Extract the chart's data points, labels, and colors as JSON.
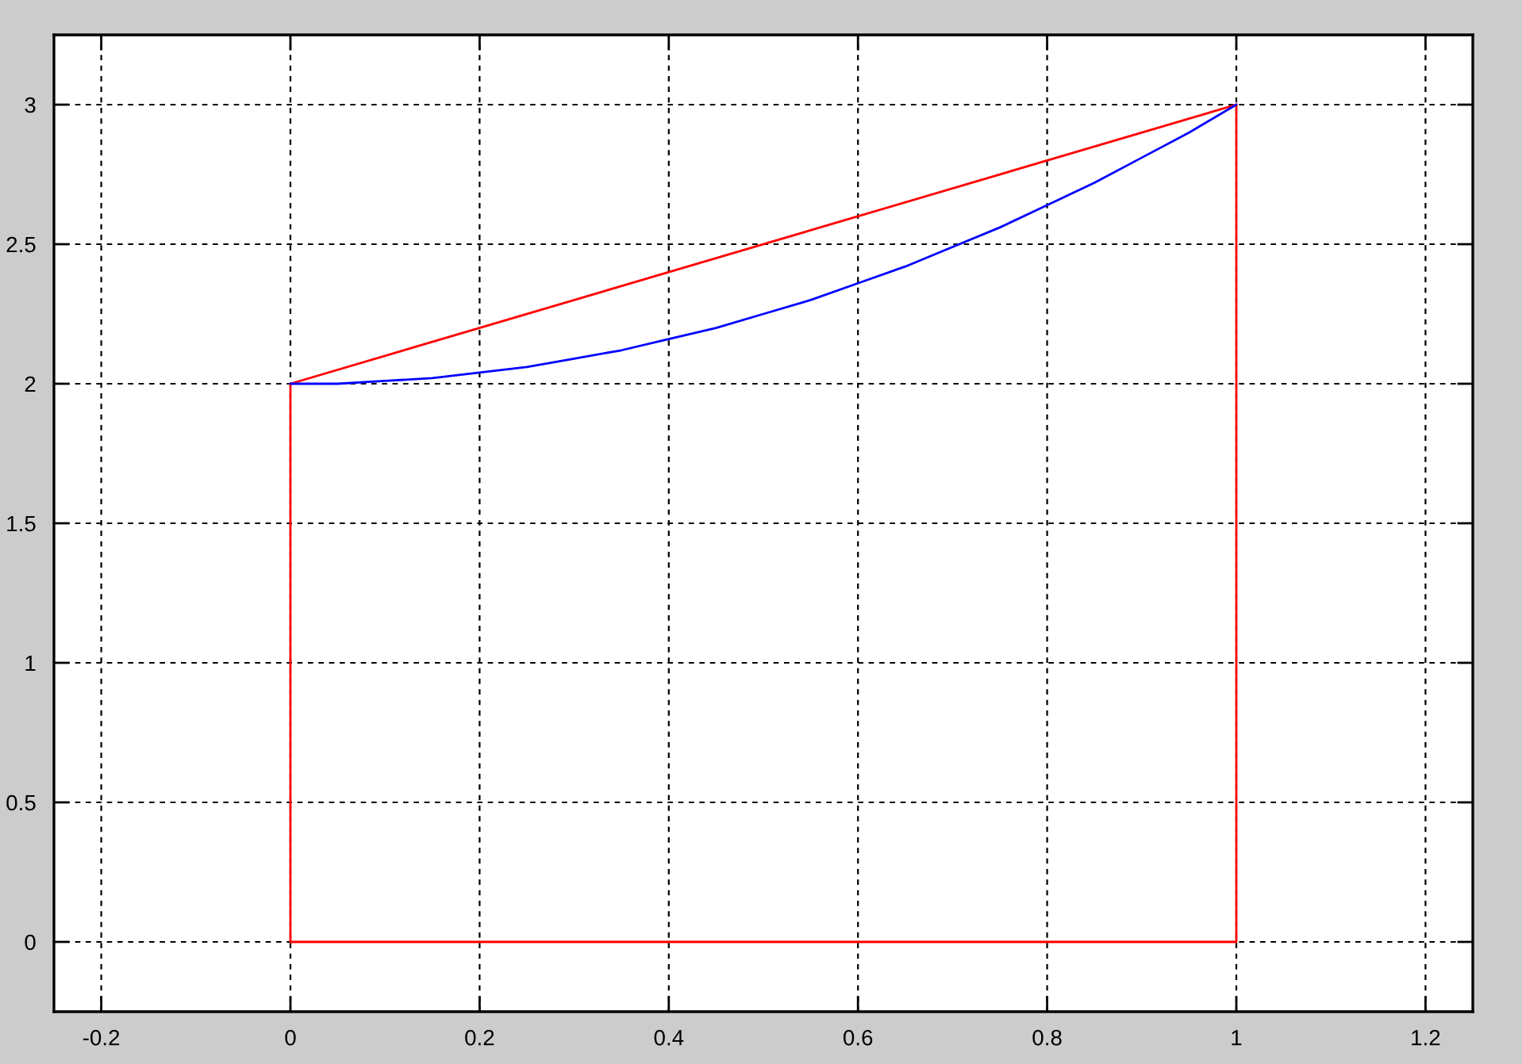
{
  "chart_data": {
    "type": "line",
    "xlim": [
      -0.25,
      1.25
    ],
    "ylim": [
      -0.25,
      3.25
    ],
    "xticks": [
      -0.2,
      0,
      0.2,
      0.4,
      0.6,
      0.8,
      1,
      1.2
    ],
    "yticks": [
      0,
      0.5,
      1,
      1.5,
      2,
      2.5,
      3
    ],
    "grid": true,
    "series": [
      {
        "color": "#ff0000",
        "x": [
          0,
          1
        ],
        "values": [
          2,
          3
        ]
      },
      {
        "color": "#ff0000",
        "x": [
          0,
          0,
          1,
          1
        ],
        "values": [
          2,
          0,
          0,
          3
        ]
      },
      {
        "color": "#0000ff",
        "x": [
          0,
          0.05,
          0.1,
          0.15,
          0.2,
          0.25,
          0.3,
          0.35,
          0.4,
          0.45,
          0.5,
          0.55,
          0.6,
          0.65,
          0.7,
          0.75,
          0.8,
          0.85,
          0.9,
          0.95,
          1
        ],
        "values": [
          2,
          2,
          2.01,
          2.02,
          2.04,
          2.06,
          2.09,
          2.12,
          2.16,
          2.2,
          2.25,
          2.3,
          2.36,
          2.42,
          2.49,
          2.56,
          2.64,
          2.72,
          2.81,
          2.9,
          3
        ]
      }
    ]
  }
}
